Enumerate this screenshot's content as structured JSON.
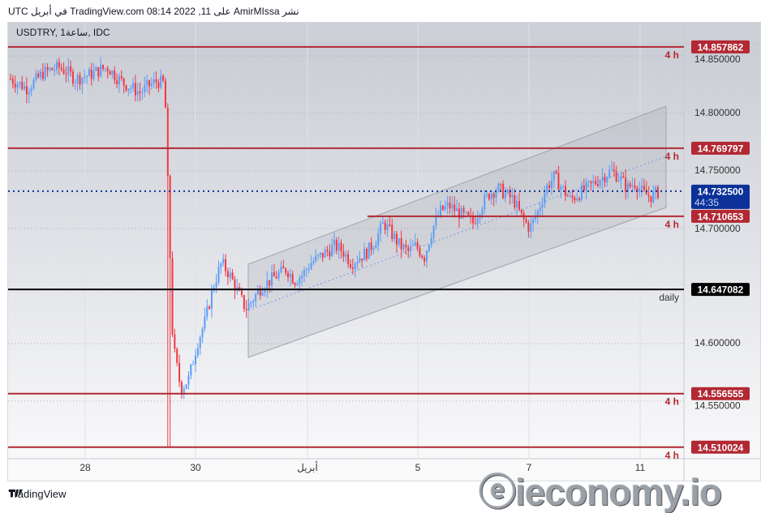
{
  "header": {
    "published": "نشر AmirMIssa على TradingView.com 08:14 2022 ,11 في أبريل UTC"
  },
  "symbol": {
    "label": "USDTRY, 1ساعة, IDC"
  },
  "footer": {
    "brand": "TradingView",
    "icon": "tradingview-logo-icon"
  },
  "watermark": "ieconomy.io",
  "colors": {
    "up": "#5b9cf6",
    "down": "#f23645",
    "level": "#b22833",
    "daily": "#000000",
    "current": "#0c3299"
  },
  "chart_data": {
    "type": "candlestick",
    "symbol": "USDTRY",
    "interval": "1h",
    "ylim": [
      14.5,
      14.87
    ],
    "y_ticks": [
      "14.850000",
      "14.800000",
      "14.750000",
      "14.700000",
      "14.600000",
      "14.550000"
    ],
    "x_ticks": [
      "28",
      "30",
      "أبريل",
      "5",
      "7",
      "11"
    ],
    "grid": true,
    "closes": [
      14.83,
      14.826,
      14.822,
      14.828,
      14.835,
      14.838,
      14.84,
      14.836,
      14.83,
      14.832,
      14.834,
      14.838,
      14.84,
      14.832,
      14.826,
      14.822,
      14.818,
      14.824,
      14.828,
      14.826,
      14.6,
      14.56,
      14.57,
      14.6,
      14.62,
      14.65,
      14.67,
      14.66,
      14.645,
      14.63,
      14.64,
      14.65,
      14.655,
      14.66,
      14.665,
      14.655,
      14.66,
      14.67,
      14.675,
      14.68,
      14.685,
      14.68,
      14.67,
      14.675,
      14.68,
      14.69,
      14.705,
      14.695,
      14.685,
      14.68,
      14.685,
      14.675,
      14.7,
      14.715,
      14.72,
      14.715,
      14.71,
      14.705,
      14.72,
      14.73,
      14.735,
      14.73,
      14.725,
      14.71,
      14.7,
      14.715,
      14.735,
      14.745,
      14.735,
      14.725,
      14.73,
      14.735,
      14.74,
      14.745,
      14.75,
      14.745,
      14.735,
      14.74,
      14.73,
      14.728,
      14.7325
    ],
    "levels": [
      {
        "price": "14.857862",
        "value": 14.857862,
        "tag": "4 h",
        "type": "4h"
      },
      {
        "price": "14.769797",
        "value": 14.769797,
        "tag": "4 h",
        "type": "4h"
      },
      {
        "price": "14.710653",
        "value": 14.710653,
        "tag": "4 h",
        "type": "4h"
      },
      {
        "price": "14.647082",
        "value": 14.647082,
        "tag": "daily",
        "type": "daily"
      },
      {
        "price": "14.556555",
        "value": 14.556555,
        "tag": "4 h",
        "type": "4h"
      },
      {
        "price": "14.510024",
        "value": 14.510024,
        "tag": "4 h",
        "type": "4h"
      }
    ],
    "current_price": {
      "price": "14.732500",
      "value": 14.7325,
      "countdown": "44:35"
    }
  }
}
